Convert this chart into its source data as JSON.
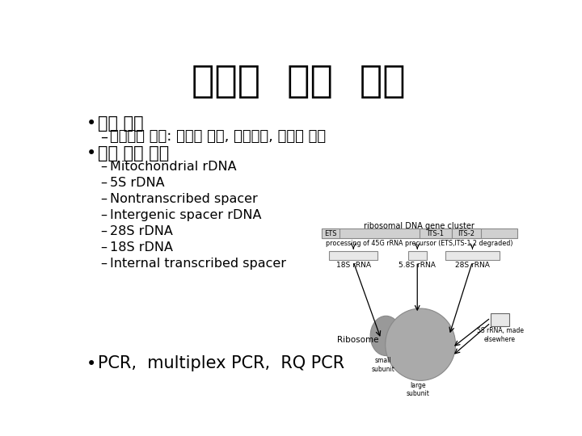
{
  "title": "진균의  분자  진단",
  "background_color": "#ffffff",
  "text_color": "#000000",
  "title_fontsize": 34,
  "bullet1": "핵산 추출",
  "sub_bullet1": "세포벽의 파괴: 물리적 방법, 효소처리, 화학적 방법",
  "bullet2": "주요 표적 부위",
  "sub_bullets2": [
    "Mitochondrial rDNA",
    "5S rDNA",
    "Nontranscribed spacer",
    "Intergenic spacer rDNA",
    "28S rDNA",
    "18S rDNA",
    "Internal transcribed spacer"
  ],
  "bullet3": "PCR,  multiplex PCR,  RQ PCR",
  "diagram_label_top": "ribosomal DNA gene cluster",
  "diagram_label_processing": "processing of 45G rRNA precursor (ETS,ITS-1,2 degraded)",
  "diagram_ribosome_label": "Ribosome",
  "diagram_small_subunit": "small\nsubunit",
  "diagram_large_subunit": "large\nsubunit",
  "diagram_5s_label": "5S rRNA, made\nelsewhere"
}
